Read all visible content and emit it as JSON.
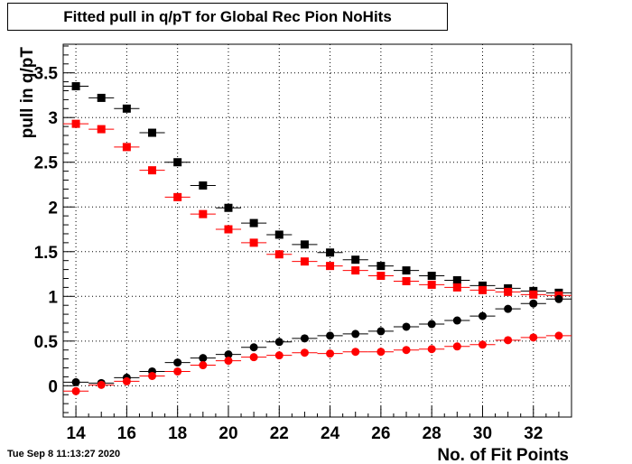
{
  "page": {
    "title": "Fitted pull in q/pT for Global Rec Pion NoHits",
    "timestamp": "Tue Sep  8 11:13:27 2020"
  },
  "chart_data": {
    "type": "scatter",
    "title": "Fitted pull in q/pT for Global Rec Pion NoHits",
    "xlabel": "No. of Fit Points",
    "ylabel": "pull in q/pT",
    "xlim": [
      13.5,
      33.5
    ],
    "ylim": [
      -0.35,
      3.82
    ],
    "grid": true,
    "x_ticks": [
      "14",
      "16",
      "18",
      "20",
      "22",
      "24",
      "26",
      "28",
      "30",
      "32"
    ],
    "y_ticks": [
      "0",
      "0.5",
      "1",
      "1.5",
      "2",
      "2.5",
      "3",
      "3.5"
    ],
    "x": [
      14,
      15,
      16,
      17,
      18,
      19,
      20,
      21,
      22,
      23,
      24,
      25,
      26,
      27,
      28,
      29,
      30,
      31,
      32,
      33
    ],
    "series": [
      {
        "marker": "square",
        "color": "#000000",
        "values": [
          3.35,
          3.22,
          3.1,
          2.83,
          2.5,
          2.24,
          1.99,
          1.82,
          1.69,
          1.58,
          1.49,
          1.41,
          1.34,
          1.29,
          1.23,
          1.18,
          1.12,
          1.09,
          1.06,
          1.04
        ]
      },
      {
        "marker": "square",
        "color": "#ff0000",
        "values": [
          2.93,
          2.87,
          2.67,
          2.41,
          2.11,
          1.92,
          1.75,
          1.6,
          1.47,
          1.39,
          1.34,
          1.29,
          1.23,
          1.17,
          1.13,
          1.1,
          1.07,
          1.05,
          1.02,
          1.01
        ]
      },
      {
        "marker": "circle",
        "color": "#000000",
        "values": [
          0.04,
          0.03,
          0.09,
          0.16,
          0.26,
          0.31,
          0.35,
          0.43,
          0.49,
          0.53,
          0.56,
          0.58,
          0.61,
          0.66,
          0.69,
          0.73,
          0.78,
          0.86,
          0.92,
          0.97
        ]
      },
      {
        "marker": "circle",
        "color": "#ff0000",
        "values": [
          -0.06,
          0.01,
          0.05,
          0.11,
          0.16,
          0.23,
          0.28,
          0.32,
          0.34,
          0.37,
          0.36,
          0.38,
          0.38,
          0.4,
          0.41,
          0.44,
          0.46,
          0.51,
          0.54,
          0.56
        ]
      }
    ]
  }
}
